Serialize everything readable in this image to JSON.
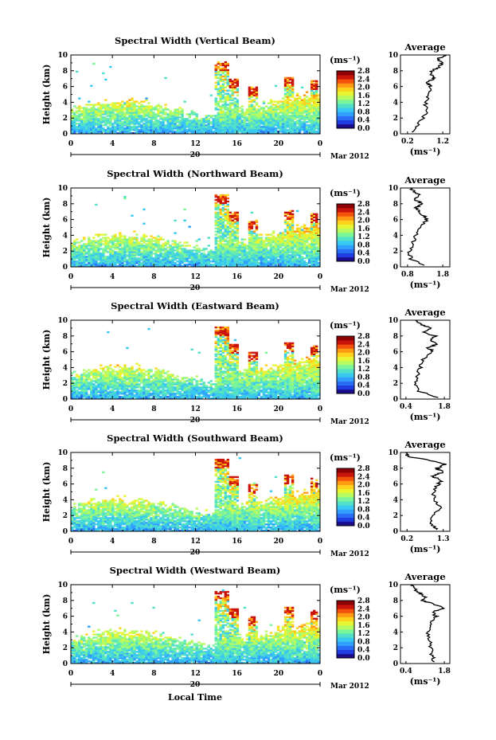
{
  "figure": {
    "xlabel": "Local Time",
    "date_day": "20",
    "date_month": "Mar 2012"
  },
  "colorbar_palette": [
    "#1a0c8a",
    "#1f3de0",
    "#2a6ef5",
    "#2fa0ff",
    "#39c8f0",
    "#52e0c8",
    "#7af59a",
    "#b6fb62",
    "#e8f534",
    "#ffd21e",
    "#ff9a12",
    "#f2520c",
    "#c8140a",
    "#8c0006"
  ],
  "chart_data": [
    {
      "type": "heatmap",
      "title": "Spectral Width (Vertical Beam)",
      "ylabel": "Height (km)",
      "unit": "(ms⁻¹)",
      "x_ticks": [
        "0",
        "4",
        "8",
        "12",
        "16",
        "20",
        "0"
      ],
      "y_ticks": [
        "0",
        "2",
        "4",
        "6",
        "8",
        "10"
      ],
      "xlim": [
        0,
        24
      ],
      "ylim": [
        0,
        10
      ],
      "colorbar_ticks": [
        "0.0",
        "0.4",
        "0.8",
        "1.2",
        "1.6",
        "2.0",
        "2.4",
        "2.8"
      ],
      "colorbar_range": [
        0,
        2.8
      ],
      "seed": 11,
      "average_profile": {
        "title": "Average",
        "unit": "(ms⁻¹)",
        "x_ticks": [
          "0.2",
          "1.2"
        ],
        "xlim": [
          0,
          1.4
        ],
        "heights": [
          0.2,
          1,
          2,
          3,
          4,
          5,
          6,
          6.5,
          7,
          7.5,
          8,
          8.5,
          9,
          9.5,
          10
        ],
        "values": [
          0.35,
          0.45,
          0.65,
          0.75,
          0.7,
          0.8,
          0.85,
          0.75,
          0.95,
          0.85,
          0.9,
          1.1,
          1.2,
          1.05,
          1.3
        ]
      }
    },
    {
      "type": "heatmap",
      "title": "Spectral Width (Northward Beam)",
      "ylabel": "Height (km)",
      "unit": "(ms⁻¹)",
      "x_ticks": [
        "0",
        "4",
        "8",
        "12",
        "16",
        "20",
        "0"
      ],
      "y_ticks": [
        "0",
        "2",
        "4",
        "6",
        "8",
        "10"
      ],
      "xlim": [
        0,
        24
      ],
      "ylim": [
        0,
        10
      ],
      "colorbar_ticks": [
        "0.0",
        "0.4",
        "0.8",
        "1.2",
        "1.6",
        "2.0",
        "2.4",
        "2.8"
      ],
      "colorbar_range": [
        0,
        2.8
      ],
      "seed": 23,
      "average_profile": {
        "title": "Average",
        "unit": "(ms⁻¹)",
        "x_ticks": [
          "0.8",
          "1.8"
        ],
        "xlim": [
          0.6,
          2.0
        ],
        "heights": [
          0.2,
          1,
          2,
          3,
          4,
          5,
          6,
          6.5,
          7,
          7.5,
          8,
          8.5,
          9,
          9.5,
          10
        ],
        "values": [
          1.3,
          0.9,
          0.85,
          0.95,
          1.05,
          1.15,
          1.35,
          1.25,
          1.15,
          1.05,
          1.25,
          1.0,
          1.15,
          1.0,
          0.9
        ]
      }
    },
    {
      "type": "heatmap",
      "title": "Spectral Width (Eastward Beam)",
      "ylabel": "Height (km)",
      "unit": "(ms⁻¹)",
      "x_ticks": [
        "0",
        "4",
        "8",
        "12",
        "16",
        "20",
        "0"
      ],
      "y_ticks": [
        "0",
        "2",
        "4",
        "6",
        "8",
        "10"
      ],
      "xlim": [
        0,
        24
      ],
      "ylim": [
        0,
        10
      ],
      "colorbar_ticks": [
        "0.0",
        "0.4",
        "0.8",
        "1.2",
        "1.6",
        "2.0",
        "2.4",
        "2.8"
      ],
      "colorbar_range": [
        0,
        2.8
      ],
      "seed": 37,
      "average_profile": {
        "title": "Average",
        "unit": "(ms⁻¹)",
        "x_ticks": [
          "0.4",
          "1.8"
        ],
        "xlim": [
          0.2,
          2.0
        ],
        "heights": [
          0.2,
          1,
          2,
          3,
          4,
          5,
          6,
          6.5,
          7,
          7.5,
          8,
          8.5,
          9,
          9.5,
          10
        ],
        "values": [
          1.6,
          0.85,
          0.75,
          0.8,
          0.95,
          1.0,
          1.4,
          1.2,
          1.55,
          1.3,
          1.5,
          1.0,
          1.3,
          0.9,
          0.8
        ]
      }
    },
    {
      "type": "heatmap",
      "title": "Spectral Width (Southward Beam)",
      "ylabel": "Height (km)",
      "unit": "(ms⁻¹)",
      "x_ticks": [
        "0",
        "4",
        "8",
        "12",
        "16",
        "20",
        "0"
      ],
      "y_ticks": [
        "0",
        "2",
        "4",
        "6",
        "8",
        "10"
      ],
      "xlim": [
        0,
        24
      ],
      "ylim": [
        0,
        10
      ],
      "colorbar_ticks": [
        "0.0",
        "0.4",
        "0.8",
        "1.2",
        "1.6",
        "2.0",
        "2.4",
        "2.8"
      ],
      "colorbar_range": [
        0,
        2.8
      ],
      "seed": 51,
      "average_profile": {
        "title": "Average",
        "unit": "(ms⁻¹)",
        "x_ticks": [
          "0.2",
          "1.3"
        ],
        "xlim": [
          0,
          1.5
        ],
        "heights": [
          0.2,
          1,
          2,
          3,
          4,
          5,
          6,
          6.5,
          7,
          7.5,
          8,
          8.5,
          9,
          9.5,
          10
        ],
        "values": [
          1.1,
          0.9,
          1.0,
          1.2,
          1.05,
          1.0,
          1.15,
          1.25,
          0.95,
          1.3,
          1.1,
          1.35,
          0.9,
          0.2,
          0.15
        ]
      }
    },
    {
      "type": "heatmap",
      "title": "Spectral Width (Westward Beam)",
      "ylabel": "Height (km)",
      "unit": "(ms⁻¹)",
      "x_ticks": [
        "0",
        "4",
        "8",
        "12",
        "16",
        "20",
        "0"
      ],
      "y_ticks": [
        "0",
        "2",
        "4",
        "6",
        "8",
        "10"
      ],
      "xlim": [
        0,
        24
      ],
      "ylim": [
        0,
        10
      ],
      "colorbar_ticks": [
        "0.0",
        "0.4",
        "0.8",
        "1.2",
        "1.6",
        "2.0",
        "2.4",
        "2.8"
      ],
      "colorbar_range": [
        0,
        2.8
      ],
      "seed": 67,
      "average_profile": {
        "title": "Average",
        "unit": "(ms⁻¹)",
        "x_ticks": [
          "0.4",
          "1.8"
        ],
        "xlim": [
          0.2,
          2.0
        ],
        "heights": [
          0.2,
          1,
          2,
          3,
          4,
          5,
          6,
          6.5,
          7,
          7.5,
          8,
          8.5,
          9,
          9.5,
          10
        ],
        "values": [
          1.45,
          1.35,
          1.3,
          1.25,
          1.2,
          1.3,
          1.5,
          1.35,
          1.75,
          1.45,
          0.95,
          1.1,
          0.85,
          0.7,
          0.6
        ]
      }
    }
  ]
}
